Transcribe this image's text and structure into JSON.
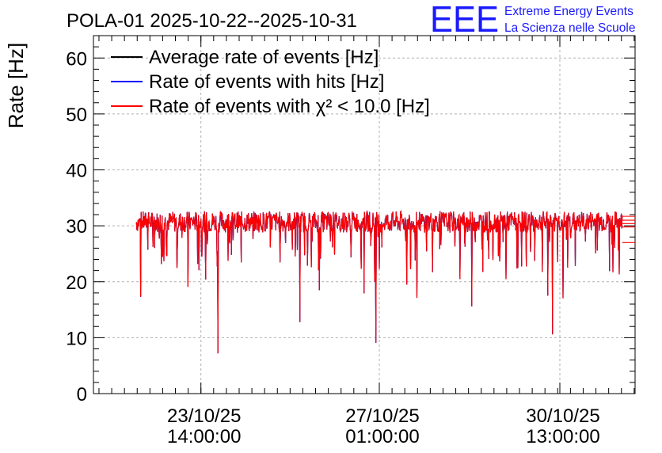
{
  "chart_data": {
    "type": "line",
    "title": "POLA-01 2025-10-22--2025-10-31",
    "ylabel": "Rate [Hz]",
    "xlabel": "",
    "ylim": [
      0,
      64
    ],
    "grid": true,
    "legend_position": "top-left",
    "y_ticks": [
      "0",
      "10",
      "20",
      "30",
      "40",
      "50",
      "60"
    ],
    "x_ticks": [
      {
        "date": "23/10/25",
        "time": "14:00:00"
      },
      {
        "date": "27/10/25",
        "time": "01:00:00"
      },
      {
        "date": "30/10/25",
        "time": "13:00:00"
      }
    ],
    "x_range": [
      "2025-10-21 12:00",
      "2025-11-01 00:00"
    ],
    "data_span": [
      "2025-10-22 08:00",
      "2025-10-31 18:00"
    ],
    "series": [
      {
        "name": "Average rate of events [Hz]",
        "color": "#000000",
        "baseline": 30.7
      },
      {
        "name": "Rate of events with hits [Hz]",
        "color": "#0000ff",
        "baseline": 30.7
      },
      {
        "name": "Rate of events with χ² < 10.0 [Hz]",
        "color": "#ff0000",
        "baseline": 30.7
      }
    ],
    "notable_dips": [
      {
        "time": "2025-10-23 22:00",
        "value": 7.2
      },
      {
        "time": "2025-10-26 23:30",
        "value": 9.1
      },
      {
        "time": "2025-10-25 12:00",
        "value": 12.8
      },
      {
        "time": "2025-10-30 09:30",
        "value": 10.6
      },
      {
        "time": "2025-10-23 08:00",
        "value": 19.1
      },
      {
        "time": "2025-10-28 20:00",
        "value": 15.6
      }
    ]
  },
  "logo": {
    "mark": "EEE",
    "line1": "Extreme Energy Events",
    "line2": "La Scienza nelle Scuole"
  },
  "colors": {
    "logo": "#1a1aff",
    "grid": "#b0b0b0"
  }
}
